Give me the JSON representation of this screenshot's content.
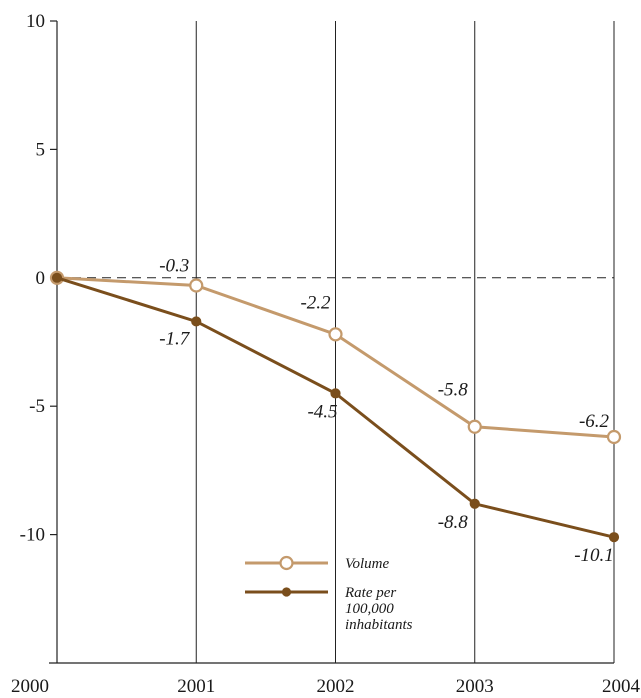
{
  "chart_data": {
    "type": "line",
    "title": "",
    "xlabel": "",
    "ylabel": "",
    "x": [
      2000,
      2001,
      2002,
      2003,
      2004
    ],
    "x_tick_labels": [
      "2000",
      "2001",
      "2002",
      "2003",
      "2004"
    ],
    "ylim": [
      -15,
      10
    ],
    "y_ticks": [
      10,
      5,
      0,
      -5,
      -10
    ],
    "y_tick_labels": [
      "10",
      "5",
      "0",
      "-5",
      "-10"
    ],
    "grid": "vertical",
    "zero_line": "dashed",
    "series": [
      {
        "name": "Volume",
        "values": [
          0,
          -0.3,
          -2.2,
          -5.8,
          -6.2
        ],
        "labels": [
          "",
          "-0.3",
          "-2.2",
          "-5.8",
          "-6.2"
        ],
        "color": "#c49a6c",
        "marker": "open-circle"
      },
      {
        "name": "Rate per 100,000 inhabitants",
        "name_lines": [
          "Rate per",
          "100,000",
          "inhabitants"
        ],
        "values": [
          0,
          -1.7,
          -4.5,
          -8.8,
          -10.1
        ],
        "labels": [
          "",
          "-1.7",
          "-4.5",
          "-8.8",
          "-10.1"
        ],
        "color": "#7a4e1c",
        "marker": "filled-circle"
      }
    ],
    "legend": "lower-center"
  }
}
